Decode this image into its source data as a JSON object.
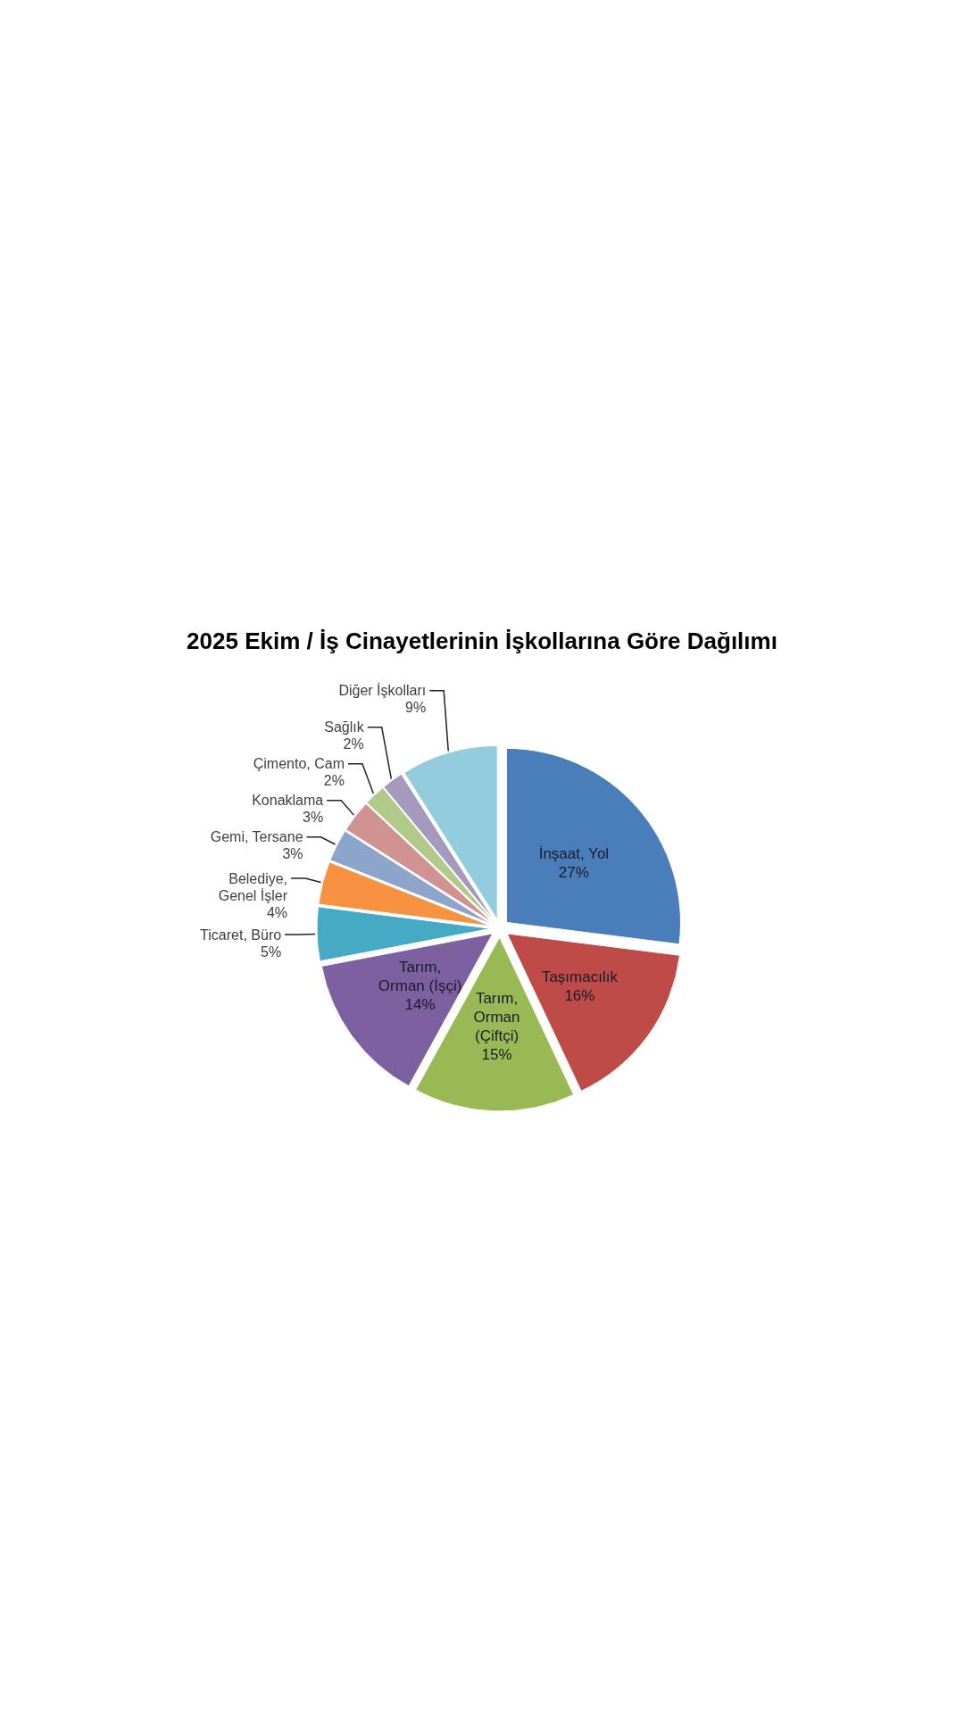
{
  "chart_data": {
    "type": "pie",
    "title": "2025 Ekim / İş Cinayetlerinin İşkollarına Göre Dağılımı",
    "categories": [
      "İnşaat, Yol",
      "Taşımacılık",
      "Tarım, Orman (Çiftçi)",
      "Tarım, Orman (İşçi)",
      "Ticaret, Büro",
      "Belediye, Genel İşler",
      "Gemi, Tersane",
      "Konaklama",
      "Çimento, Cam",
      "Sağlık",
      "Diğer İşkolları"
    ],
    "values": [
      27,
      16,
      15,
      14,
      5,
      4,
      3,
      3,
      2,
      2,
      9
    ],
    "colors": [
      "#4a7ebb",
      "#be4b48",
      "#98b954",
      "#7d60a0",
      "#46aac5",
      "#f69240",
      "#8ea5cb",
      "#d19392",
      "#b1c989",
      "#a599bd",
      "#93cddd"
    ],
    "value_labels": [
      "27%",
      "16%",
      "15%",
      "14%",
      "5%",
      "4%",
      "3%",
      "3%",
      "2%",
      "2%",
      "9%"
    ]
  }
}
